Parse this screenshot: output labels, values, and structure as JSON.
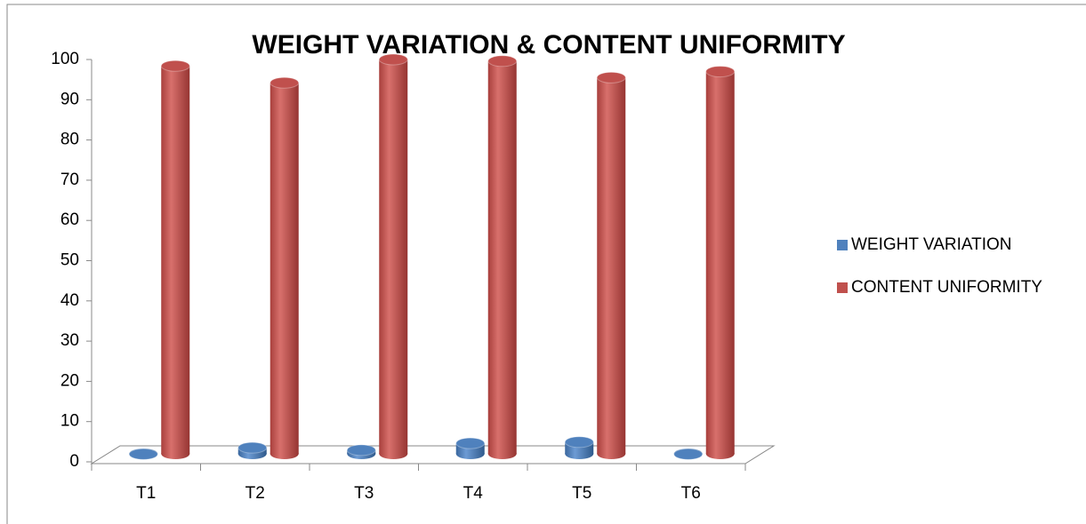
{
  "chart_data": {
    "type": "bar3d",
    "title": "WEIGHT VARIATION & CONTENT UNIFORMITY",
    "categories": [
      "T1",
      "T2",
      "T3",
      "T4",
      "T5",
      "T6"
    ],
    "series": [
      {
        "name": "WEIGHT VARIATION",
        "color": "#4f81bd",
        "values": [
          1.9,
          3.5,
          2.9,
          4.6,
          4.9,
          1.9
        ]
      },
      {
        "name": "CONTENT UNIFORMITY",
        "color": "#c0504d",
        "values": [
          98.4,
          94.2,
          100,
          99.6,
          95.5,
          97
        ]
      }
    ],
    "ylim": [
      0,
      100
    ],
    "yticks": [
      0,
      10,
      20,
      30,
      40,
      50,
      60,
      70,
      80,
      90,
      100
    ],
    "legend": "right"
  }
}
